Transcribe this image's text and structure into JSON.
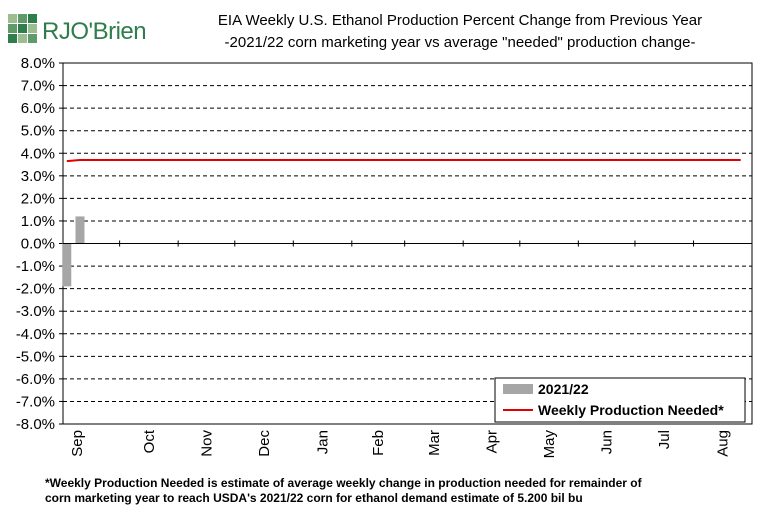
{
  "logo": {
    "text": "RJO'Brien",
    "icon": "rjo-brien-logo-icon",
    "color": "#2e7d4a"
  },
  "chart_data": {
    "type": "bar",
    "title": "EIA Weekly U.S. Ethanol Production Percent Change from Previous Year",
    "subtitle": "-2021/22 corn marketing year vs average \"needed\" production change-",
    "xlabel": "",
    "ylabel": "",
    "ylim": [
      -8.0,
      8.0
    ],
    "y_ticks": [
      "8.0%",
      "7.0%",
      "6.0%",
      "5.0%",
      "4.0%",
      "3.0%",
      "2.0%",
      "1.0%",
      "0.0%",
      "-1.0%",
      "-2.0%",
      "-3.0%",
      "-4.0%",
      "-5.0%",
      "-6.0%",
      "-7.0%",
      "-8.0%"
    ],
    "x_ticks": [
      "Sep",
      "Oct",
      "Nov",
      "Dec",
      "Jan",
      "Feb",
      "Mar",
      "Apr",
      "May",
      "Jun",
      "Jul",
      "Aug"
    ],
    "grid": true,
    "legend_position": "bottom-right",
    "series": [
      {
        "name": "2021/22",
        "kind": "bar",
        "color": "#a6a6a6",
        "x": [
          "2021-09-03",
          "2021-09-10"
        ],
        "values": [
          -1.9,
          1.2
        ]
      },
      {
        "name": "Weekly Production Needed*",
        "kind": "line",
        "color": "#e00000",
        "x": [
          "2021-09-03",
          "2021-09-10",
          "2022-08-26"
        ],
        "values": [
          3.65,
          3.7,
          3.7
        ]
      }
    ]
  },
  "footnote": {
    "line1": "*Weekly Production Needed is estimate of average weekly change in production needed for remainder of",
    "line2": "corn marketing year to reach USDA's 2021/22 corn for ethanol demand estimate of 5.200 bil bu"
  }
}
